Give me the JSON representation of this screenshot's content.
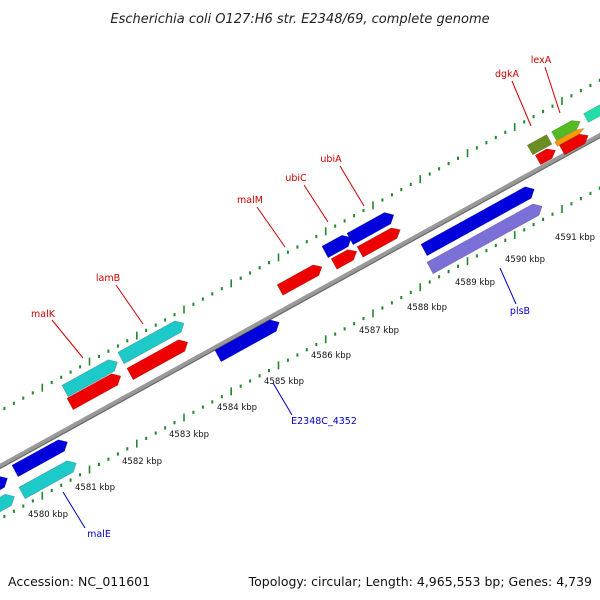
{
  "title": "Escherichia coli O127:H6 str. E2348/69, complete genome",
  "footer": {
    "accession": "Accession: NC_011601",
    "summary": "Topology: circular; Length: 4,965,553 bp; Genes: 4,739"
  },
  "colors": {
    "backbone": "#888888",
    "tick_dot": "#1f8a2e",
    "label_top": "#cc0000",
    "label_bottom": "#0000cc",
    "blue": "#0000dd",
    "cyan": "#1ec9c9",
    "red": "#ee0000",
    "lavender": "#7b6fd8",
    "olive": "#6b8e23",
    "green": "#55bb22",
    "orange": "#ff9900",
    "mint": "#22ddaa"
  },
  "tick_labels": [
    "4580 kbp",
    "4581 kbp",
    "4582 kbp",
    "4583 kbp",
    "4584 kbp",
    "4585 kbp",
    "4586 kbp",
    "4587 kbp",
    "4588 kbp",
    "4589 kbp",
    "4590 kbp",
    "4591 kbp"
  ],
  "labels_top": [
    "malK",
    "lamB",
    "malM",
    "ubiC",
    "ubiA",
    "dgkA",
    "lexA"
  ],
  "labels_bottom": [
    "malE",
    "E2348C_4352",
    "plsB"
  ]
}
